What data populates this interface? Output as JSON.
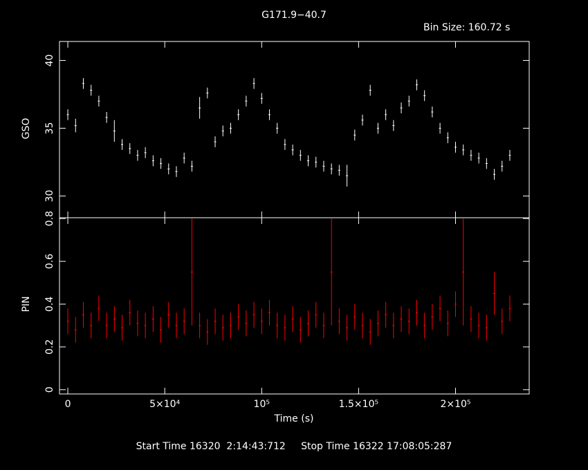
{
  "chart_data": [
    {
      "type": "errorbar",
      "title": "G171.9−40.7",
      "annotation": "Bin Size: 160.72 s",
      "ylabel": "GSO",
      "x": [
        0,
        4000,
        8000,
        12000,
        16000,
        20000,
        24000,
        28000,
        32000,
        36000,
        40000,
        44000,
        48000,
        52000,
        56000,
        60000,
        64000,
        68000,
        72000,
        76000,
        80000,
        84000,
        88000,
        92000,
        96000,
        100000,
        104000,
        108000,
        112000,
        116000,
        120000,
        124000,
        128000,
        132000,
        136000,
        140000,
        144000,
        148000,
        152000,
        156000,
        160000,
        164000,
        168000,
        172000,
        176000,
        180000,
        184000,
        188000,
        192000,
        196000,
        200000,
        204000,
        208000,
        212000,
        216000,
        220000,
        224000,
        228000
      ],
      "series": [
        {
          "name": "GSO",
          "color": "#ffffff",
          "values": [
            36.0,
            35.2,
            38.3,
            37.8,
            37.0,
            35.8,
            34.8,
            33.8,
            33.5,
            33.0,
            33.2,
            32.6,
            32.4,
            32.0,
            31.8,
            32.8,
            32.2,
            36.5,
            37.6,
            34.0,
            34.8,
            35.0,
            36.0,
            37.0,
            38.3,
            37.2,
            36.0,
            35.0,
            33.8,
            33.4,
            33.0,
            32.6,
            32.5,
            32.2,
            32.0,
            31.9,
            31.5,
            34.5,
            35.6,
            37.8,
            35.0,
            36.0,
            35.2,
            36.5,
            37.0,
            38.2,
            37.4,
            36.2,
            35.0,
            34.3,
            33.6,
            33.4,
            33.0,
            32.8,
            32.4,
            31.6,
            32.2,
            33.0
          ],
          "errors": [
            0.4,
            0.5,
            0.4,
            0.4,
            0.4,
            0.4,
            0.8,
            0.4,
            0.4,
            0.4,
            0.4,
            0.4,
            0.4,
            0.4,
            0.4,
            0.4,
            0.4,
            0.8,
            0.4,
            0.4,
            0.4,
            0.4,
            0.4,
            0.4,
            0.4,
            0.4,
            0.4,
            0.4,
            0.4,
            0.4,
            0.4,
            0.4,
            0.4,
            0.4,
            0.4,
            0.4,
            0.8,
            0.4,
            0.4,
            0.4,
            0.4,
            0.4,
            0.4,
            0.4,
            0.4,
            0.4,
            0.4,
            0.4,
            0.4,
            0.4,
            0.4,
            0.4,
            0.4,
            0.4,
            0.4,
            0.4,
            0.4,
            0.4
          ]
        }
      ],
      "xlim": [
        -4300,
        238000
      ],
      "ylim": [
        28.4,
        41.4
      ],
      "yticks": [
        30,
        35,
        40
      ]
    },
    {
      "type": "errorbar",
      "ylabel": "PIN",
      "xlabel": "Time (s)",
      "footer": "Start Time 16320  2:14:43:712     Stop Time 16322 17:08:05:287",
      "x": [
        0,
        4000,
        8000,
        12000,
        16000,
        20000,
        24000,
        28000,
        32000,
        36000,
        40000,
        44000,
        48000,
        52000,
        56000,
        60000,
        64000,
        68000,
        72000,
        76000,
        80000,
        84000,
        88000,
        92000,
        96000,
        100000,
        104000,
        108000,
        112000,
        116000,
        120000,
        124000,
        128000,
        132000,
        136000,
        140000,
        144000,
        148000,
        152000,
        156000,
        160000,
        164000,
        168000,
        172000,
        176000,
        180000,
        184000,
        188000,
        192000,
        196000,
        200000,
        204000,
        208000,
        212000,
        216000,
        220000,
        224000,
        228000
      ],
      "series": [
        {
          "name": "PIN",
          "color": "#ff0000",
          "values": [
            0.32,
            0.28,
            0.35,
            0.3,
            0.38,
            0.3,
            0.33,
            0.29,
            0.36,
            0.31,
            0.3,
            0.33,
            0.28,
            0.35,
            0.3,
            0.32,
            0.55,
            0.3,
            0.27,
            0.32,
            0.29,
            0.3,
            0.34,
            0.31,
            0.35,
            0.32,
            0.36,
            0.3,
            0.29,
            0.33,
            0.28,
            0.31,
            0.35,
            0.3,
            0.55,
            0.32,
            0.29,
            0.34,
            0.3,
            0.27,
            0.31,
            0.35,
            0.3,
            0.33,
            0.32,
            0.36,
            0.3,
            0.34,
            0.38,
            0.31,
            0.4,
            0.55,
            0.33,
            0.3,
            0.29,
            0.45,
            0.32,
            0.38
          ],
          "errors": [
            0.06,
            0.06,
            0.06,
            0.06,
            0.06,
            0.06,
            0.06,
            0.06,
            0.06,
            0.06,
            0.06,
            0.06,
            0.06,
            0.06,
            0.06,
            0.06,
            0.25,
            0.06,
            0.06,
            0.06,
            0.06,
            0.06,
            0.06,
            0.06,
            0.06,
            0.06,
            0.06,
            0.06,
            0.06,
            0.06,
            0.06,
            0.06,
            0.06,
            0.06,
            0.25,
            0.06,
            0.06,
            0.06,
            0.06,
            0.06,
            0.06,
            0.06,
            0.06,
            0.06,
            0.06,
            0.06,
            0.06,
            0.06,
            0.06,
            0.06,
            0.06,
            0.25,
            0.06,
            0.06,
            0.06,
            0.1,
            0.06,
            0.06
          ]
        }
      ],
      "xlim": [
        -4300,
        238000
      ],
      "xticks": [
        0,
        {
          "value": 50000,
          "label": "5×10⁴"
        },
        {
          "value": 100000,
          "label": "10⁵"
        },
        {
          "value": 150000,
          "label": "1.5×10⁵"
        },
        {
          "value": 200000,
          "label": "2×10⁵"
        }
      ],
      "ylim": [
        -0.02,
        0.804
      ],
      "yticks": [
        0,
        0.2,
        0.4,
        0.6,
        0.8
      ]
    }
  ]
}
